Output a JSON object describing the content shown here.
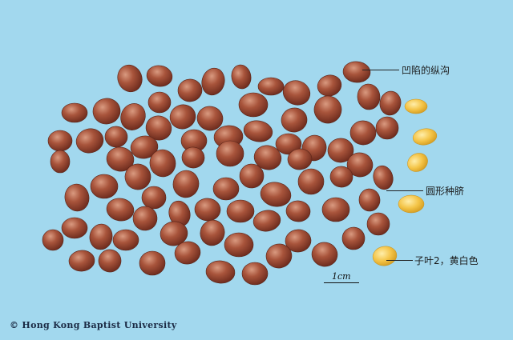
{
  "annotations": {
    "groove": "凹陷的纵沟",
    "hilum": "圆形种脐",
    "cotyledon": "子叶2，黄白色"
  },
  "scale": {
    "label": "1cm"
  },
  "copyright": "© Hong Kong Baptist University",
  "colors": {
    "background": "#a2d8ee",
    "seed_coat": "#9a4a35",
    "cotyledon": "#f2c64a"
  }
}
